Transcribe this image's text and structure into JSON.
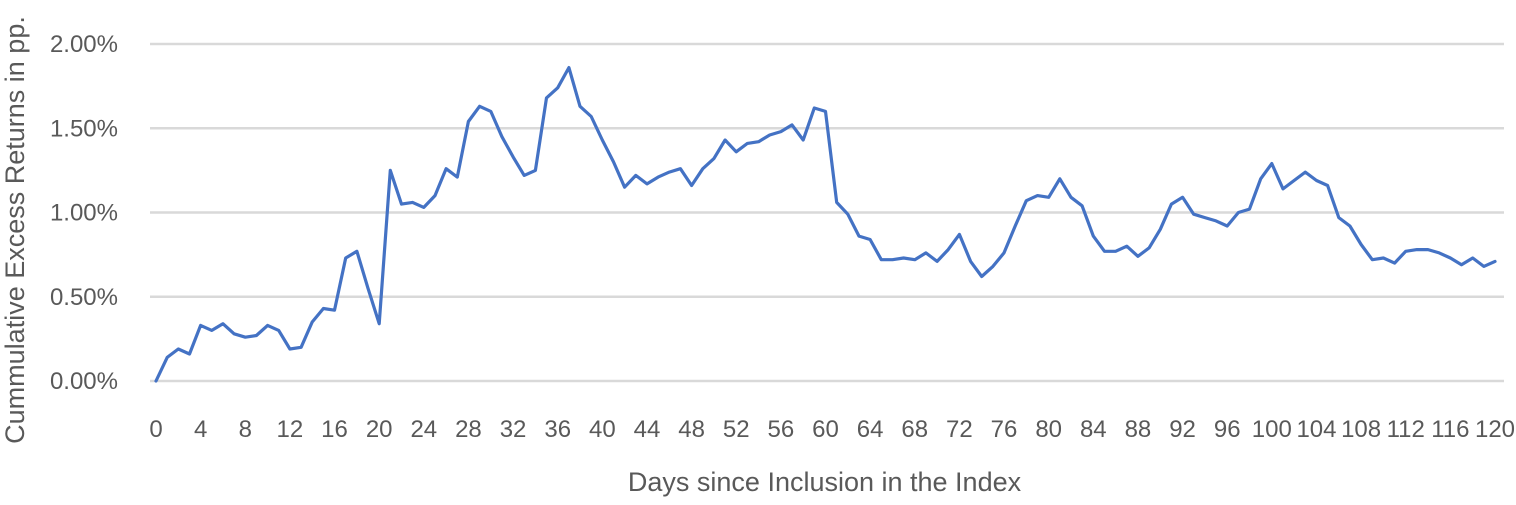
{
  "chart_data": {
    "type": "line",
    "xlabel": "Days since Inclusion in the Index",
    "ylabel": "Cummulative Excess Returns in pp.",
    "xlim": [
      0,
      120
    ],
    "ylim": [
      0,
      2
    ],
    "x_ticks": [
      0,
      4,
      8,
      12,
      16,
      20,
      24,
      28,
      32,
      36,
      40,
      44,
      48,
      52,
      56,
      60,
      64,
      68,
      72,
      76,
      80,
      84,
      88,
      92,
      96,
      100,
      104,
      108,
      112,
      116,
      120
    ],
    "x_tick_labels": [
      "0",
      "4",
      "8",
      "12",
      "16",
      "20",
      "24",
      "28",
      "32",
      "36",
      "40",
      "44",
      "48",
      "52",
      "56",
      "60",
      "64",
      "68",
      "72",
      "76",
      "80",
      "84",
      "88",
      "92",
      "96",
      "100",
      "104",
      "108",
      "112",
      "116",
      "120"
    ],
    "y_ticks": [
      0,
      0.5,
      1.0,
      1.5,
      2.0
    ],
    "y_tick_labels": [
      "0.00%",
      "0.50%",
      "1.00%",
      "1.50%",
      "2.00%"
    ],
    "grid": "horizontal",
    "legend": "none",
    "series": [
      {
        "color": "#4472C4",
        "x": [
          0,
          1,
          2,
          3,
          4,
          5,
          6,
          7,
          8,
          9,
          10,
          11,
          12,
          13,
          14,
          15,
          16,
          17,
          18,
          19,
          20,
          21,
          22,
          23,
          24,
          25,
          26,
          27,
          28,
          29,
          30,
          31,
          32,
          33,
          34,
          35,
          36,
          37,
          38,
          39,
          40,
          41,
          42,
          43,
          44,
          45,
          46,
          47,
          48,
          49,
          50,
          51,
          52,
          53,
          54,
          55,
          56,
          57,
          58,
          59,
          60,
          61,
          62,
          63,
          64,
          65,
          66,
          67,
          68,
          69,
          70,
          71,
          72,
          73,
          74,
          75,
          76,
          77,
          78,
          79,
          80,
          81,
          82,
          83,
          84,
          85,
          86,
          87,
          88,
          89,
          90,
          91,
          92,
          93,
          94,
          95,
          96,
          97,
          98,
          99,
          100,
          101,
          102,
          103,
          104,
          105,
          106,
          107,
          108,
          109,
          110,
          111,
          112,
          113,
          114,
          115,
          116,
          117,
          118,
          119,
          120
        ],
        "values": [
          0.0,
          0.14,
          0.19,
          0.16,
          0.33,
          0.3,
          0.34,
          0.28,
          0.26,
          0.27,
          0.33,
          0.3,
          0.19,
          0.2,
          0.35,
          0.43,
          0.42,
          0.73,
          0.77,
          0.55,
          0.34,
          1.25,
          1.05,
          1.06,
          1.03,
          1.1,
          1.26,
          1.21,
          1.54,
          1.63,
          1.6,
          1.45,
          1.33,
          1.22,
          1.25,
          1.68,
          1.74,
          1.86,
          1.63,
          1.57,
          1.43,
          1.3,
          1.15,
          1.22,
          1.17,
          1.21,
          1.24,
          1.26,
          1.16,
          1.26,
          1.32,
          1.43,
          1.36,
          1.41,
          1.42,
          1.46,
          1.48,
          1.52,
          1.43,
          1.62,
          1.6,
          1.06,
          0.99,
          0.86,
          0.84,
          0.72,
          0.72,
          0.73,
          0.72,
          0.76,
          0.71,
          0.78,
          0.87,
          0.71,
          0.62,
          0.68,
          0.76,
          0.92,
          1.07,
          1.1,
          1.09,
          1.2,
          1.09,
          1.04,
          0.86,
          0.77,
          0.77,
          0.8,
          0.74,
          0.79,
          0.9,
          1.05,
          1.09,
          0.99,
          0.97,
          0.95,
          0.92,
          1.0,
          1.02,
          1.2,
          1.29,
          1.14,
          1.19,
          1.24,
          1.19,
          1.16,
          0.97,
          0.92,
          0.81,
          0.72,
          0.73,
          0.7,
          0.77,
          0.78,
          0.78,
          0.76,
          0.73,
          0.69,
          0.73,
          0.68,
          0.71
        ]
      }
    ]
  }
}
